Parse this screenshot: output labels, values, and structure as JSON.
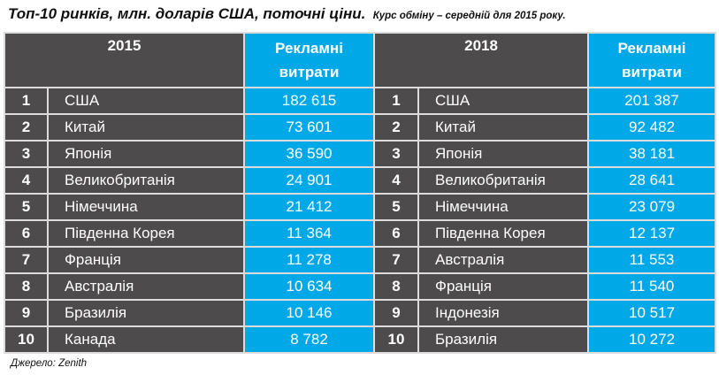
{
  "title": {
    "main": "Топ-10 ринків, млн. доларів США, поточні ціни.",
    "sub": "Курс обміну – середній для 2015 року."
  },
  "table": {
    "left": {
      "year_header": "2015",
      "spend_header": "Рекламні витрати",
      "rows": [
        {
          "rank": "1",
          "country": "США",
          "value": "182 615"
        },
        {
          "rank": "2",
          "country": "Китай",
          "value": "73 601"
        },
        {
          "rank": "3",
          "country": "Японія",
          "value": "36 590"
        },
        {
          "rank": "4",
          "country": "Великобританія",
          "value": "24 901"
        },
        {
          "rank": "5",
          "country": "Німеччина",
          "value": "21 412"
        },
        {
          "rank": "6",
          "country": "Південна Корея",
          "value": "11 364"
        },
        {
          "rank": "7",
          "country": "Франція",
          "value": "11 278"
        },
        {
          "rank": "8",
          "country": "Австралія",
          "value": "10 634"
        },
        {
          "rank": "9",
          "country": "Бразилія",
          "value": "10 146"
        },
        {
          "rank": "10",
          "country": "Канада",
          "value": "8 782"
        }
      ]
    },
    "right": {
      "year_header": "2018",
      "spend_header": "Рекламні витрати",
      "rows": [
        {
          "rank": "1",
          "country": "США",
          "value": "201 387"
        },
        {
          "rank": "2",
          "country": "Китай",
          "value": "92 482"
        },
        {
          "rank": "3",
          "country": "Японія",
          "value": "38 181"
        },
        {
          "rank": "4",
          "country": "Великобританія",
          "value": "28 641"
        },
        {
          "rank": "5",
          "country": "Німеччина",
          "value": "23 079"
        },
        {
          "rank": "6",
          "country": "Південна Корея",
          "value": "12 137"
        },
        {
          "rank": "7",
          "country": "Австралія",
          "value": "11 553"
        },
        {
          "rank": "8",
          "country": "Франція",
          "value": "11 540"
        },
        {
          "rank": "9",
          "country": "Індонезія",
          "value": "10 517"
        },
        {
          "rank": "10",
          "country": "Бразилія",
          "value": "10 272"
        }
      ]
    }
  },
  "source": "Джерело: Zenith",
  "colors": {
    "dark_cell": "#4d4b4c",
    "accent_blue": "#00a8e8",
    "grid": "#dcdcdc"
  }
}
